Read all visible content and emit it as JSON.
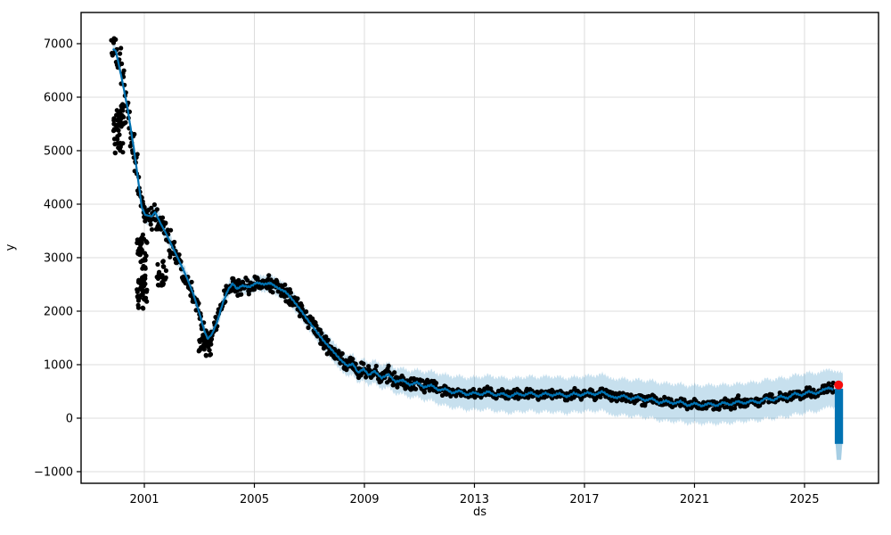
{
  "figure": {
    "background": "#ffffff",
    "title": ""
  },
  "chart_data": {
    "type": "line",
    "title": "",
    "xlabel": "ds",
    "ylabel": "y",
    "legend": "none",
    "grid": true,
    "grid_color": "#dcdcdc",
    "xlim": [
      1998.7,
      2027.69
    ],
    "ylim": [
      -1217,
      7583
    ],
    "xticks": [
      2001,
      2005,
      2009,
      2013,
      2017,
      2021,
      2025
    ],
    "xtick_labels": [
      "2001",
      "2005",
      "2009",
      "2013",
      "2017",
      "2021",
      "2025"
    ],
    "yticks": [
      -1000,
      0,
      1000,
      2000,
      3000,
      4000,
      5000,
      6000,
      7000
    ],
    "ytick_labels": [
      "−1000",
      "0",
      "1000",
      "2000",
      "3000",
      "4000",
      "5000",
      "6000",
      "7000"
    ],
    "colors": {
      "line": "#0072b2",
      "band": "#0072b2",
      "band_opacity": 0.22,
      "points": "#000000",
      "highlight": "#f50d0d",
      "spine": "#000000",
      "tick_text": "#000000"
    },
    "series": [
      {
        "name": "forecast-yhat",
        "line_jitter_amp": 18,
        "points": [
          [
            1999.85,
            6900
          ],
          [
            1999.96,
            6870
          ],
          [
            2000.16,
            6400
          ],
          [
            2000.38,
            5820
          ],
          [
            2000.61,
            5070
          ],
          [
            2000.81,
            4320
          ],
          [
            2000.9,
            3950
          ],
          [
            2001.03,
            3800
          ],
          [
            2001.26,
            3770
          ],
          [
            2001.39,
            3850
          ],
          [
            2001.58,
            3650
          ],
          [
            2001.81,
            3430
          ],
          [
            2002.07,
            3150
          ],
          [
            2002.33,
            2870
          ],
          [
            2002.55,
            2620
          ],
          [
            2002.78,
            2320
          ],
          [
            2003.01,
            1950
          ],
          [
            2003.17,
            1650
          ],
          [
            2003.3,
            1480
          ],
          [
            2003.46,
            1570
          ],
          [
            2003.66,
            1820
          ],
          [
            2003.85,
            2150
          ],
          [
            2004.04,
            2400
          ],
          [
            2004.21,
            2520
          ],
          [
            2004.37,
            2420
          ],
          [
            2004.56,
            2480
          ],
          [
            2004.82,
            2450
          ],
          [
            2005.08,
            2530
          ],
          [
            2005.34,
            2500
          ],
          [
            2005.6,
            2520
          ],
          [
            2005.86,
            2430
          ],
          [
            2006.12,
            2370
          ],
          [
            2006.37,
            2230
          ],
          [
            2006.67,
            2030
          ],
          [
            2006.96,
            1820
          ],
          [
            2007.25,
            1620
          ],
          [
            2007.54,
            1430
          ],
          [
            2007.83,
            1270
          ],
          [
            2008.12,
            1100
          ],
          [
            2008.38,
            980
          ],
          [
            2008.58,
            1020
          ],
          [
            2008.77,
            850
          ],
          [
            2008.97,
            920
          ],
          [
            2009.16,
            800
          ],
          [
            2009.36,
            880
          ],
          [
            2009.62,
            750
          ],
          [
            2009.88,
            820
          ],
          [
            2010.13,
            680
          ],
          [
            2010.39,
            720
          ],
          [
            2010.65,
            620
          ],
          [
            2010.91,
            670
          ],
          [
            2011.17,
            570
          ],
          [
            2011.43,
            620
          ],
          [
            2011.69,
            520
          ],
          [
            2011.95,
            550
          ],
          [
            2012.2,
            470
          ],
          [
            2012.46,
            520
          ],
          [
            2012.72,
            430
          ],
          [
            2012.98,
            480
          ],
          [
            2013.24,
            430
          ],
          [
            2013.5,
            500
          ],
          [
            2013.76,
            420
          ],
          [
            2014.02,
            470
          ],
          [
            2014.28,
            400
          ],
          [
            2014.54,
            470
          ],
          [
            2014.79,
            420
          ],
          [
            2015.05,
            480
          ],
          [
            2015.31,
            400
          ],
          [
            2015.57,
            470
          ],
          [
            2015.83,
            420
          ],
          [
            2016.09,
            470
          ],
          [
            2016.35,
            400
          ],
          [
            2016.61,
            470
          ],
          [
            2016.86,
            420
          ],
          [
            2017.12,
            480
          ],
          [
            2017.38,
            430
          ],
          [
            2017.64,
            500
          ],
          [
            2017.9,
            420
          ],
          [
            2018.16,
            380
          ],
          [
            2018.42,
            430
          ],
          [
            2018.68,
            350
          ],
          [
            2018.94,
            400
          ],
          [
            2019.2,
            320
          ],
          [
            2019.45,
            370
          ],
          [
            2019.71,
            280
          ],
          [
            2019.97,
            330
          ],
          [
            2020.23,
            270
          ],
          [
            2020.49,
            320
          ],
          [
            2020.75,
            230
          ],
          [
            2021.01,
            280
          ],
          [
            2021.27,
            220
          ],
          [
            2021.53,
            280
          ],
          [
            2021.79,
            230
          ],
          [
            2022.05,
            300
          ],
          [
            2022.31,
            250
          ],
          [
            2022.57,
            320
          ],
          [
            2022.82,
            270
          ],
          [
            2023.08,
            330
          ],
          [
            2023.34,
            280
          ],
          [
            2023.6,
            380
          ],
          [
            2023.86,
            330
          ],
          [
            2024.12,
            420
          ],
          [
            2024.38,
            370
          ],
          [
            2024.64,
            470
          ],
          [
            2024.9,
            420
          ],
          [
            2025.15,
            500
          ],
          [
            2025.41,
            450
          ],
          [
            2025.67,
            530
          ],
          [
            2025.87,
            570
          ],
          [
            2026.06,
            540
          ]
        ]
      }
    ],
    "uncertainty_band": {
      "name": "yhat-uncertainty-interval",
      "edge_jitter_amp": 50,
      "halfwidth": [
        [
          1999.85,
          90
        ],
        [
          2000.4,
          95
        ],
        [
          2000.85,
          115
        ],
        [
          2001.05,
          175
        ],
        [
          2001.4,
          150
        ],
        [
          2002.0,
          135
        ],
        [
          2003.0,
          130
        ],
        [
          2003.5,
          125
        ],
        [
          2004.5,
          140
        ],
        [
          2005.5,
          150
        ],
        [
          2006.5,
          160
        ],
        [
          2007.5,
          175
        ],
        [
          2008.5,
          195
        ],
        [
          2009.5,
          215
        ],
        [
          2010.5,
          245
        ],
        [
          2011.5,
          275
        ],
        [
          2012.5,
          300
        ],
        [
          2013.5,
          315
        ],
        [
          2015.0,
          325
        ],
        [
          2017.0,
          330
        ],
        [
          2019.0,
          345
        ],
        [
          2021.0,
          355
        ],
        [
          2023.0,
          360
        ],
        [
          2025.0,
          370
        ],
        [
          2026.4,
          330
        ]
      ]
    },
    "observations": {
      "name": "history-points",
      "marker_radius_px": 2.6,
      "t_start": 1999.8,
      "t_end": 2026.07,
      "count": 1400,
      "noise_envelope": [
        [
          1999.8,
          150
        ],
        [
          1999.95,
          420
        ],
        [
          2000.15,
          520
        ],
        [
          2000.45,
          500
        ],
        [
          2000.7,
          400
        ],
        [
          2001.0,
          280
        ],
        [
          2001.4,
          260
        ],
        [
          2002.0,
          230
        ],
        [
          2002.8,
          180
        ],
        [
          2003.4,
          150
        ],
        [
          2004.0,
          150
        ],
        [
          2005.0,
          145
        ],
        [
          2006.0,
          150
        ],
        [
          2007.0,
          145
        ],
        [
          2008.0,
          140
        ],
        [
          2009.0,
          140
        ],
        [
          2010.0,
          125
        ],
        [
          2011.0,
          115
        ],
        [
          2012.0,
          100
        ],
        [
          2013.0,
          90
        ],
        [
          2015.0,
          85
        ],
        [
          2017.0,
          88
        ],
        [
          2019.0,
          85
        ],
        [
          2021.0,
          82
        ],
        [
          2023.0,
          85
        ],
        [
          2024.5,
          90
        ],
        [
          2026.07,
          85
        ]
      ],
      "outlier_clusters": [
        {
          "t_start": 2000.72,
          "t_end": 2001.1,
          "y_min": 1950,
          "y_max": 3450,
          "n": 75
        },
        {
          "t_start": 1999.88,
          "t_end": 2000.25,
          "y_min": 4950,
          "y_max": 5850,
          "n": 50
        },
        {
          "t_start": 2001.45,
          "t_end": 2001.8,
          "y_min": 2450,
          "y_max": 2950,
          "n": 28
        },
        {
          "t_start": 2002.9,
          "t_end": 2003.45,
          "y_min": 1150,
          "y_max": 1500,
          "n": 35
        }
      ]
    },
    "forecast_tail": {
      "t_start": 2026.1,
      "t_end": 2026.4,
      "top": 550,
      "bottom": -480,
      "band_bottom": -780
    },
    "highlight_point": {
      "t": 2026.24,
      "y": 620,
      "radius_px": 5
    }
  }
}
